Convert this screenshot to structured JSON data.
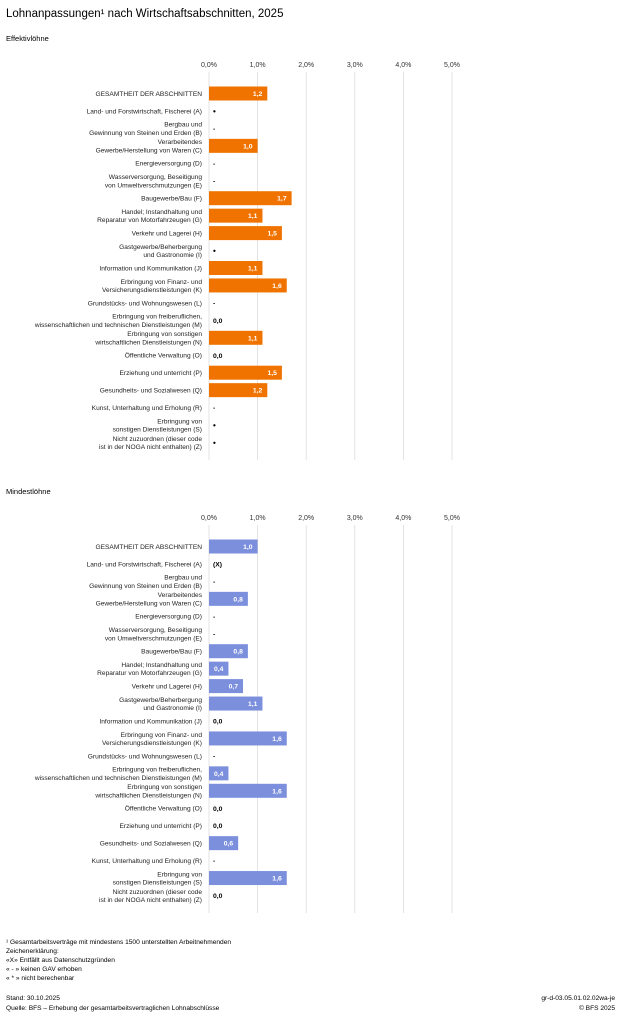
{
  "title": "Lohnanpassungen¹ nach Wirtschaftsabschnitten, 2025",
  "chart_data": [
    {
      "type": "bar",
      "orientation": "horizontal",
      "title": "Effektivlöhne",
      "color": "#f07300",
      "xlim": [
        0,
        5
      ],
      "ticks": [
        "0,0%",
        "1,0%",
        "2,0%",
        "3,0%",
        "4,0%",
        "5,0%"
      ],
      "categories": [
        [
          "GESAMTHEIT DER ABSCHNITTEN"
        ],
        [
          "Land- und Forstwirtschaft, Fischerei (A)"
        ],
        [
          "Bergbau und",
          "Gewinnung von Steinen und Erden (B)"
        ],
        [
          "Verarbeitendes",
          "Gewerbe/Herstellung von Waren (C)"
        ],
        [
          "Energieversorgung (D)"
        ],
        [
          "Wasserversorgung, Beseitigung",
          "von Umweltverschmutzungen (E)"
        ],
        [
          "Baugewerbe/Bau (F)"
        ],
        [
          "Handel; Instandhaltung und",
          "Reparatur von Motorfahrzeugen (G)"
        ],
        [
          "Verkehr und Lagerei (H)"
        ],
        [
          "Gastgewerbe/Beherbergung",
          "und Gastronomie (I)"
        ],
        [
          "Information und Kommunikation (J)"
        ],
        [
          "Erbringung von Finanz- und",
          "Versicherungsdienstleistungen (K)"
        ],
        [
          "Grundstücks- und Wohnungswesen (L)"
        ],
        [
          "Erbringung von freiberuflichen,",
          "wissenschaftlichen und technischen Dienstleistungen (M)"
        ],
        [
          "Erbringung von sonstigen",
          "wirtschaftlichen Dienstleistungen (N)"
        ],
        [
          "Öffentliche Verwaltung (O)"
        ],
        [
          "Erziehung und unterricht (P)"
        ],
        [
          "Gesundheits- und Sozialwesen (Q)"
        ],
        [
          "Kunst, Unterhaltung und Erholung (R)"
        ],
        [
          "Erbringung von",
          "sonstigen Dienstleistungen (S)"
        ],
        [
          "Nicht zuzuordnen (dieser code",
          "ist in der NOGA nicht enthalten) (Z)"
        ]
      ],
      "values": [
        1.2,
        null,
        null,
        1.0,
        null,
        null,
        1.7,
        1.1,
        1.5,
        null,
        1.1,
        1.6,
        null,
        0.0,
        1.1,
        0.0,
        1.5,
        1.2,
        null,
        null,
        null
      ],
      "labels": [
        "1,2",
        "•",
        "-",
        "1,0",
        "-",
        "-",
        "1,7",
        "1,1",
        "1,5",
        "•",
        "1,1",
        "1,6",
        "-",
        "0,0",
        "1,1",
        "0,0",
        "1,5",
        "1,2",
        "-",
        "•",
        "•"
      ]
    },
    {
      "type": "bar",
      "orientation": "horizontal",
      "title": "Mindestlöhne",
      "color": "#7b8fdc",
      "xlim": [
        0,
        5
      ],
      "ticks": [
        "0,0%",
        "1,0%",
        "2,0%",
        "3,0%",
        "4,0%",
        "5,0%"
      ],
      "categories": [
        [
          "GESAMTHEIT DER ABSCHNITTEN"
        ],
        [
          "Land- und Forstwirtschaft, Fischerei (A)"
        ],
        [
          "Bergbau und",
          "Gewinnung von Steinen und Erden (B)"
        ],
        [
          "Verarbeitendes",
          "Gewerbe/Herstellung von Waren (C)"
        ],
        [
          "Energieversorgung (D)"
        ],
        [
          "Wasserversorgung, Beseitigung",
          "von Umweltverschmutzungen (E)"
        ],
        [
          "Baugewerbe/Bau (F)"
        ],
        [
          "Handel; Instandhaltung und",
          "Reparatur von Motorfahrzeugen (G)"
        ],
        [
          "Verkehr und Lagerei (H)"
        ],
        [
          "Gastgewerbe/Beherbergung",
          "und Gastronomie (I)"
        ],
        [
          "Information und Kommunikation (J)"
        ],
        [
          "Erbringung von Finanz- und",
          "Versicherungsdienstleistungen (K)"
        ],
        [
          "Grundstücks- und Wohnungswesen (L)"
        ],
        [
          "Erbringung von freiberuflichen,",
          "wissenschaftlichen und technischen Dienstleistungen (M)"
        ],
        [
          "Erbringung von sonstigen",
          "wirtschaftlichen Dienstleistungen (N)"
        ],
        [
          "Öffentliche Verwaltung (O)"
        ],
        [
          "Erziehung und unterricht (P)"
        ],
        [
          "Gesundheits- und Sozialwesen (Q)"
        ],
        [
          "Kunst, Unterhaltung und Erholung (R)"
        ],
        [
          "Erbringung von",
          "sonstigen Dienstleistungen (S)"
        ],
        [
          "Nicht zuzuordnen (dieser code",
          "ist in der NOGA nicht enthalten) (Z)"
        ]
      ],
      "values": [
        1.0,
        null,
        null,
        0.8,
        null,
        null,
        0.8,
        0.4,
        0.7,
        1.1,
        0.0,
        1.6,
        null,
        0.4,
        1.6,
        0.0,
        0.0,
        0.6,
        null,
        1.6,
        0.0
      ],
      "labels": [
        "1,0",
        "(X)",
        "-",
        "0,8",
        "-",
        "-",
        "0,8",
        "0,4",
        "0,7",
        "1,1",
        "0,0",
        "1,6",
        "-",
        "0,4",
        "1,6",
        "0,0",
        "0,0",
        "0,6",
        "-",
        "1,6",
        "0,0"
      ]
    }
  ],
  "footnotes": [
    "¹ Gesamtarbeitsverträge mit mindestens 1500 unterstellten Arbeitnehmenden",
    "Zeichenerklärung:",
    "«X» Entfällt aus Datenschutzgründen",
    "« - » keinen GAV erhoben",
    "« * » nicht berechenbar"
  ],
  "footer": {
    "stand": "Stand: 30.10.2025",
    "quelle": "Quelle: BFS – Erhebung der gesamtarbeitsvertraglichen Lohnabschlüsse",
    "code": "gr-d-03.05.01.02.02wa-je",
    "copyright": "© BFS 2025"
  }
}
